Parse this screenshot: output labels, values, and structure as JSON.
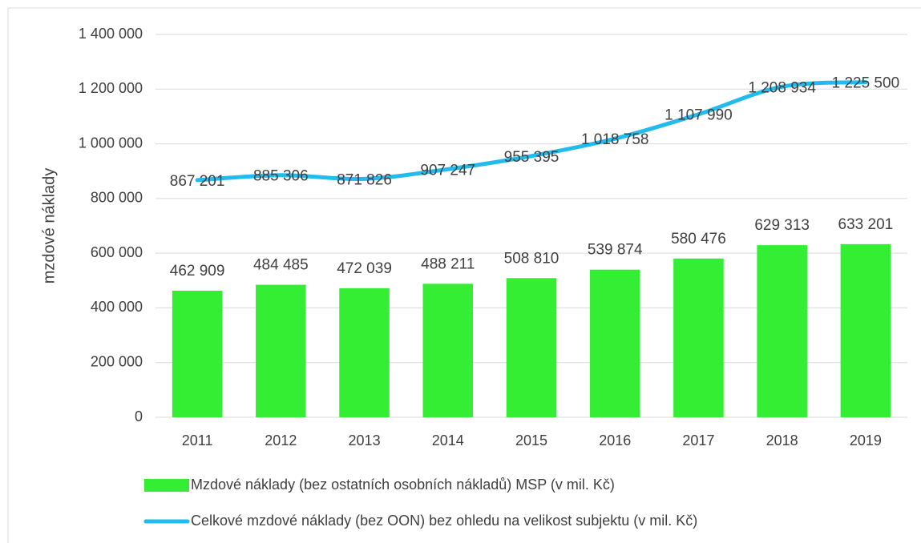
{
  "chart_data": {
    "type": "bar",
    "y_label": "mzdové náklady",
    "categories": [
      "2011",
      "2012",
      "2013",
      "2014",
      "2015",
      "2016",
      "2017",
      "2018",
      "2019"
    ],
    "series": [
      {
        "name": "Mzdové náklady (bez ostatních osobních nákladů) MSP (v mil. Kč)",
        "type": "bar",
        "color": "#33ee33",
        "values": [
          462909,
          484485,
          472039,
          488211,
          508810,
          539874,
          580476,
          629313,
          633201
        ],
        "value_labels": [
          "462 909",
          "484 485",
          "472 039",
          "488 211",
          "508 810",
          "539 874",
          "580 476",
          "629 313",
          "633 201"
        ]
      },
      {
        "name": "Celkové mzdové náklady (bez OON) bez ohledu na velikost subjektu (v mil. Kč)",
        "type": "line",
        "color": "#22bbee",
        "values": [
          867201,
          885306,
          871826,
          907247,
          955395,
          1018758,
          1107990,
          1208934,
          1225500
        ],
        "value_labels": [
          "867 201",
          "885 306",
          "871 826",
          "907 247",
          "955 395",
          "1 018 758",
          "1 107 990",
          "1 208 934",
          "1 225 500"
        ]
      }
    ],
    "ylim": [
      0,
      1400000
    ],
    "yticks": [
      0,
      {
        "value": 200000,
        "label": "200 000"
      },
      {
        "value": 400000,
        "label": "400 000"
      },
      {
        "value": 600000,
        "label": "600 000"
      },
      {
        "value": 800000,
        "label": "800 000"
      },
      {
        "value": 1000000,
        "label": "1 000 000"
      },
      {
        "value": 1200000,
        "label": "1 200 000"
      },
      {
        "value": 1400000,
        "label": "1 400 000"
      }
    ],
    "grid": true,
    "legend": "bottom"
  }
}
